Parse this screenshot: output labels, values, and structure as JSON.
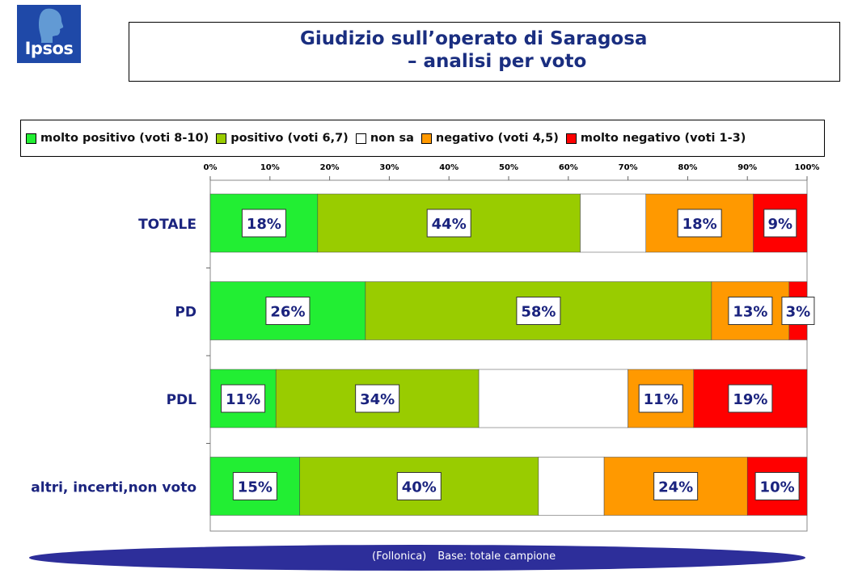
{
  "logo": {
    "text": "Ipsos"
  },
  "title": {
    "line1": "Giudizio sull’operato di Saragosa",
    "line2": "– analisi per voto"
  },
  "chart_data": {
    "type": "bar",
    "orientation": "horizontal",
    "stacked": true,
    "categories": [
      "TOTALE",
      "PD",
      "PDL",
      "altri, incerti,non voto"
    ],
    "series": [
      {
        "name": "molto positivo (voti 8-10)",
        "color": "#22ee33",
        "values": [
          18,
          26,
          11,
          15
        ]
      },
      {
        "name": "positivo (voti 6,7)",
        "color": "#99cc00",
        "values": [
          44,
          58,
          34,
          40
        ]
      },
      {
        "name": "non sa",
        "color": "#ffffff",
        "values": [
          11,
          0,
          25,
          11
        ]
      },
      {
        "name": "negativo (voti 4,5)",
        "color": "#ff9900",
        "values": [
          18,
          13,
          11,
          24
        ]
      },
      {
        "name": "molto negativo (voti 1-3)",
        "color": "#ff0000",
        "values": [
          9,
          3,
          19,
          10
        ]
      }
    ],
    "labels_shown": [
      [
        "18%",
        "44%",
        null,
        "18%",
        "9%"
      ],
      [
        "26%",
        "58%",
        null,
        "13%",
        "3%"
      ],
      [
        "11%",
        "34%",
        null,
        "11%",
        "19%"
      ],
      [
        "15%",
        "40%",
        null,
        "24%",
        "10%"
      ]
    ],
    "xlim": [
      0,
      100
    ],
    "xticks": [
      "0%",
      "10%",
      "20%",
      "30%",
      "40%",
      "50%",
      "60%",
      "70%",
      "80%",
      "90%",
      "100%"
    ],
    "grid": false,
    "legend_position": "top"
  },
  "footer": {
    "location": "(Follonica)",
    "base": "Base: totale campione"
  }
}
